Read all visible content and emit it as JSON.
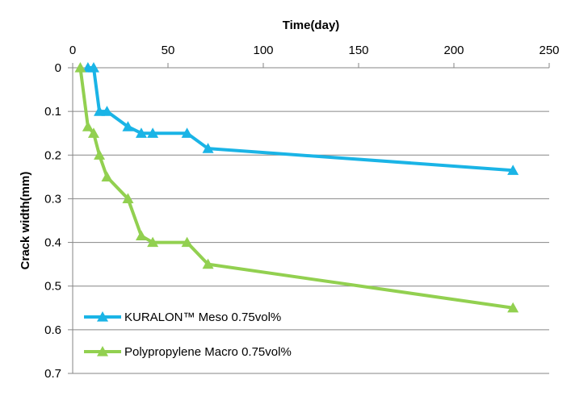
{
  "chart_data": {
    "type": "line",
    "title": "",
    "xlabel": "Time(day)",
    "ylabel": "Crack width(mm)",
    "xlim": [
      0,
      250
    ],
    "ylim": [
      0,
      0.7
    ],
    "y_inverted": true,
    "x_axis_position": "top",
    "xticks": [
      "0",
      "50",
      "100",
      "150",
      "200",
      "250"
    ],
    "yticks": [
      "0",
      "0.1",
      "0.2",
      "0.3",
      "0.4",
      "0.5",
      "0.6",
      "0.7"
    ],
    "grid": "horizontal",
    "legend_position": "bottom-left",
    "series": [
      {
        "name": "KURALON™ Meso 0.75vol%",
        "color": "#1ab4e6",
        "marker": "triangle",
        "x": [
          8,
          11,
          14,
          18,
          29,
          36,
          42,
          60,
          71,
          231
        ],
        "y": [
          0,
          0,
          0.1,
          0.1,
          0.135,
          0.15,
          0.15,
          0.15,
          0.185,
          0.235
        ]
      },
      {
        "name": "Polypropylene Macro 0.75vol%",
        "color": "#92d050",
        "marker": "triangle",
        "x": [
          4,
          8,
          11,
          14,
          18,
          29,
          36,
          42,
          60,
          71,
          231
        ],
        "y": [
          0,
          0.135,
          0.15,
          0.2,
          0.25,
          0.3,
          0.385,
          0.4,
          0.4,
          0.45,
          0.55
        ]
      }
    ]
  }
}
